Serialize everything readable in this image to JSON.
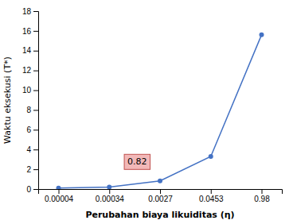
{
  "chart_data": {
    "type": "line",
    "categories": [
      "0.00004",
      "0.00034",
      "0.0027",
      "0.0453",
      "0.98"
    ],
    "values": [
      0.1,
      0.2,
      0.82,
      3.3,
      15.6
    ],
    "color": "#4472C4",
    "marker": "circle",
    "xlabel": "Perubahan biaya likuiditas (η)",
    "ylabel": "Waktu eksekusi (T*)",
    "ylim": [
      0,
      18
    ],
    "yticks": [
      0,
      2,
      4,
      6,
      8,
      10,
      12,
      14,
      16,
      18
    ],
    "grid": false,
    "annotations": [
      {
        "text": "0.82",
        "x": "0.0027",
        "y": 0.82
      }
    ]
  }
}
